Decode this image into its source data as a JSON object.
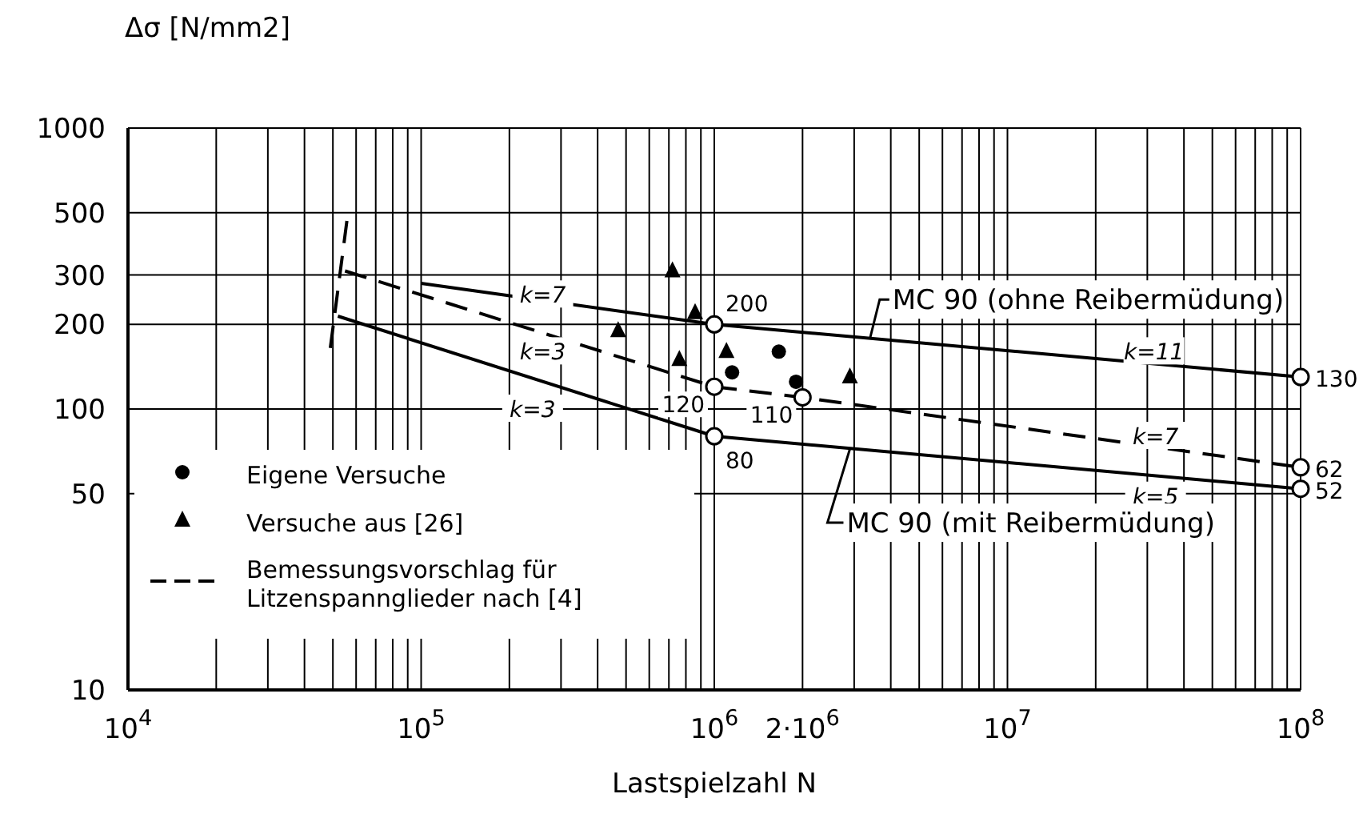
{
  "chart_data": {
    "type": "line",
    "xlabel": "Lastspielzahl N",
    "ylabel": "Δσ [N/mm2]",
    "log": "xy",
    "grid": true,
    "legend": "bottom left",
    "xlim": [
      10000,
      100000000
    ],
    "ylim": [
      10,
      1000
    ],
    "xticks": [
      {
        "value": 10000,
        "label": "10$^{4}$"
      },
      {
        "value": 20000,
        "label": null
      },
      {
        "value": 30000,
        "label": null
      },
      {
        "value": 40000,
        "label": null
      },
      {
        "value": 50000,
        "label": null
      },
      {
        "value": 60000,
        "label": null
      },
      {
        "value": 70000,
        "label": null
      },
      {
        "value": 80000,
        "label": null
      },
      {
        "value": 90000,
        "label": null
      },
      {
        "value": 100000,
        "label": "10$^{5}$"
      },
      {
        "value": 200000,
        "label": null
      },
      {
        "value": 300000,
        "label": null
      },
      {
        "value": 400000,
        "label": null
      },
      {
        "value": 500000,
        "label": null
      },
      {
        "value": 600000,
        "label": null
      },
      {
        "value": 700000,
        "label": null
      },
      {
        "value": 800000,
        "label": null
      },
      {
        "value": 900000,
        "label": null
      },
      {
        "value": 1000000,
        "label": "10$^{6}$"
      },
      {
        "value": 2000000,
        "label": "2·10$^{6}$"
      },
      {
        "value": 3000000,
        "label": null
      },
      {
        "value": 4000000,
        "label": null
      },
      {
        "value": 5000000,
        "label": null
      },
      {
        "value": 6000000,
        "label": null
      },
      {
        "value": 7000000,
        "label": null
      },
      {
        "value": 8000000,
        "label": null
      },
      {
        "value": 9000000,
        "label": null
      },
      {
        "value": 10000000,
        "label": "10$^{7}$"
      },
      {
        "value": 20000000,
        "label": null
      },
      {
        "value": 30000000,
        "label": null
      },
      {
        "value": 40000000,
        "label": null
      },
      {
        "value": 50000000,
        "label": null
      },
      {
        "value": 60000000,
        "label": null
      },
      {
        "value": 70000000,
        "label": null
      },
      {
        "value": 80000000,
        "label": null
      },
      {
        "value": 90000000,
        "label": null
      },
      {
        "value": 100000000,
        "label": "10$^{8}$"
      }
    ],
    "yticks": [
      10,
      50,
      100,
      200,
      300,
      500,
      1000
    ],
    "series": [
      {
        "color": "#000000",
        "line_style": "solid",
        "x": [
          100000,
          1000000,
          100000000
        ],
        "values": [
          280,
          200,
          130
        ],
        "value_labels": [
          null,
          "200",
          "130"
        ]
      },
      {
        "color": "#000000",
        "line_style": "solid",
        "x": [
          52000,
          1000000,
          100000000
        ],
        "values": [
          214,
          80,
          52
        ],
        "value_labels": [
          null,
          "80",
          "52"
        ]
      },
      {
        "name": "Bemessungsvorschlag für Litzenspannglieder nach [4]",
        "color": "#000000",
        "line_style": "dashed",
        "x": [
          55000,
          1000000,
          2000000,
          100000000
        ],
        "values": [
          310,
          120,
          110,
          62
        ],
        "value_labels": [
          null,
          "120",
          "110",
          "62"
        ]
      },
      {
        "color": "#000000",
        "line_style": "dashed",
        "x": [
          49000,
          56000
        ],
        "values": [
          165,
          480
        ]
      },
      {
        "type": "scatter",
        "name": "Eigene Versuche",
        "color": "#000000",
        "marker": "circle",
        "x": [
          1150000,
          1660000,
          1900000
        ],
        "values": [
          135,
          160,
          125
        ]
      },
      {
        "type": "scatter",
        "name": "Versuche aus [26]",
        "color": "#000000",
        "marker": "triangle",
        "x": [
          470000,
          720000,
          860000,
          760000,
          1100000,
          2900000
        ],
        "values": [
          190,
          310,
          220,
          150,
          160,
          130
        ]
      }
    ],
    "annotations": [
      {
        "text": "k=7",
        "x": 260000,
        "y": 255
      },
      {
        "text": "k=3",
        "x": 260000,
        "y": 160
      },
      {
        "text": "k=3",
        "x": 240000,
        "y": 100
      },
      {
        "text": "k=11",
        "x": 31600000,
        "y": 160
      },
      {
        "text": "k=7",
        "x": 32000000,
        "y": 80
      },
      {
        "text": "k=5",
        "x": 32000000,
        "y": 49
      },
      {
        "text": "MC 90 (ohne Reibermüdung)",
        "x": 3400000,
        "y": 179
      },
      {
        "text": "MC 90 (mit Reibermüdung)",
        "x": 2900000,
        "y": 72
      }
    ]
  }
}
